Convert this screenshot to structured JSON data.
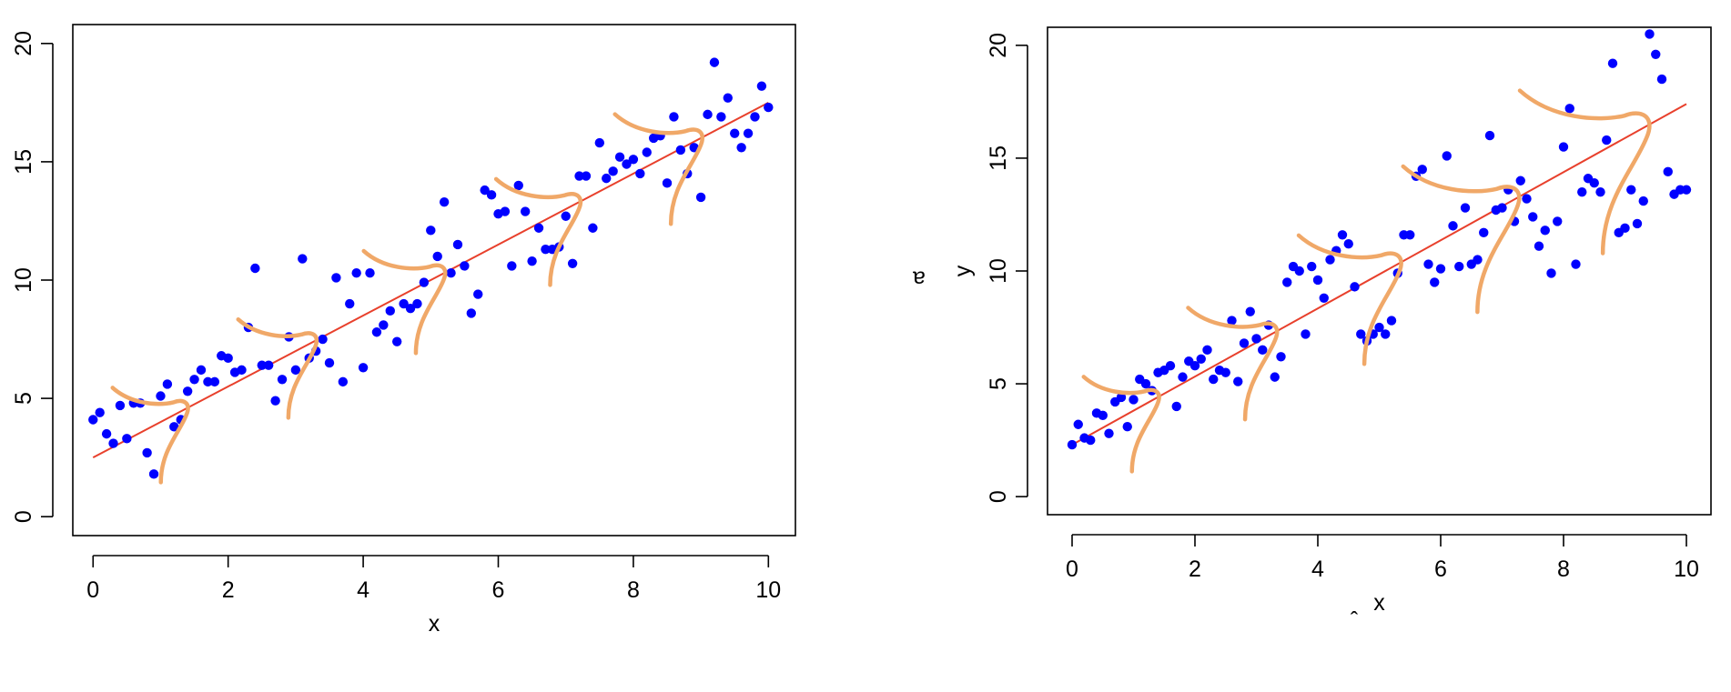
{
  "chart_data": [
    {
      "type": "scatter",
      "title": "",
      "xlabel": "x",
      "ylabel": "",
      "xlim": [
        -0.3,
        10.4
      ],
      "ylim": [
        -0.8,
        20.8
      ],
      "xticks": [
        "0",
        "2",
        "4",
        "6",
        "8",
        "10"
      ],
      "yticks": [
        "0",
        "5",
        "10",
        "15",
        "20"
      ],
      "grid": false,
      "point_color": "#0000ff",
      "line_color": "#e8402c",
      "curve_color": "#f0a868",
      "fit_line": {
        "x": [
          0,
          10
        ],
        "y": [
          2.5,
          17.5
        ]
      },
      "points": {
        "x": [
          0.0,
          0.1,
          0.2,
          0.3,
          0.4,
          0.5,
          0.6,
          0.7,
          0.8,
          0.9,
          1.0,
          1.1,
          1.2,
          1.3,
          1.4,
          1.5,
          1.6,
          1.7,
          1.8,
          1.9,
          2.0,
          2.1,
          2.2,
          2.3,
          2.4,
          2.5,
          2.6,
          2.7,
          2.8,
          2.9,
          3.0,
          3.1,
          3.2,
          3.3,
          3.4,
          3.5,
          3.6,
          3.7,
          3.8,
          3.9,
          4.0,
          4.1,
          4.2,
          4.3,
          4.4,
          4.5,
          4.6,
          4.7,
          4.8,
          4.9,
          5.0,
          5.1,
          5.2,
          5.3,
          5.4,
          5.5,
          5.6,
          5.7,
          5.8,
          5.9,
          6.0,
          6.1,
          6.2,
          6.3,
          6.4,
          6.5,
          6.6,
          6.7,
          6.8,
          6.9,
          7.0,
          7.1,
          7.2,
          7.3,
          7.4,
          7.5,
          7.6,
          7.7,
          7.8,
          7.9,
          8.0,
          8.1,
          8.2,
          8.3,
          8.4,
          8.5,
          8.6,
          8.7,
          8.8,
          8.9,
          9.0,
          9.1,
          9.2,
          9.3,
          9.4,
          9.5,
          9.6,
          9.7,
          9.8,
          9.9,
          10.0
        ],
        "y": [
          4.1,
          4.4,
          3.5,
          3.1,
          4.7,
          3.3,
          4.8,
          4.8,
          2.7,
          1.8,
          5.1,
          5.6,
          3.8,
          4.1,
          5.3,
          5.8,
          6.2,
          5.7,
          5.7,
          6.8,
          6.7,
          6.1,
          6.2,
          8.0,
          10.5,
          6.4,
          6.4,
          4.9,
          5.8,
          7.6,
          6.2,
          10.9,
          6.7,
          7.0,
          7.5,
          6.5,
          10.1,
          5.7,
          9.0,
          10.3,
          6.3,
          10.3,
          7.8,
          8.1,
          8.7,
          7.4,
          9.0,
          8.8,
          9.0,
          9.9,
          12.1,
          11.0,
          13.3,
          10.3,
          11.5,
          10.6,
          8.6,
          9.4,
          13.8,
          13.6,
          12.8,
          12.9,
          10.6,
          14.0,
          12.9,
          10.8,
          12.2,
          11.3,
          11.3,
          11.4,
          12.7,
          10.7,
          14.4,
          14.4,
          12.2,
          15.8,
          14.3,
          14.6,
          15.2,
          14.9,
          15.1,
          14.5,
          15.4,
          16.0,
          16.1,
          14.1,
          16.9,
          15.5,
          14.5,
          15.6,
          13.5,
          17.0,
          19.2,
          16.9,
          17.7,
          16.2,
          15.6,
          16.2,
          16.9,
          18.2,
          17.3
        ]
      },
      "curves_count": 5
    },
    {
      "type": "scatter",
      "title": "",
      "xlabel": "x",
      "ylabel": "y",
      "xlim": [
        -0.4,
        10.4
      ],
      "ylim": [
        -0.8,
        20.8
      ],
      "xticks": [
        "0",
        "2",
        "4",
        "6",
        "8",
        "10"
      ],
      "yticks": [
        "0",
        "5",
        "10",
        "15",
        "20"
      ],
      "grid": false,
      "point_color": "#0000ff",
      "line_color": "#e8402c",
      "curve_color": "#f0a868",
      "fit_line": {
        "x": [
          0,
          10
        ],
        "y": [
          2.3,
          17.4
        ]
      },
      "points": {
        "x": [
          0.0,
          0.1,
          0.2,
          0.3,
          0.4,
          0.5,
          0.6,
          0.7,
          0.8,
          0.9,
          1.0,
          1.1,
          1.2,
          1.3,
          1.4,
          1.5,
          1.6,
          1.7,
          1.8,
          1.9,
          2.0,
          2.1,
          2.2,
          2.3,
          2.4,
          2.5,
          2.6,
          2.7,
          2.8,
          2.9,
          3.0,
          3.1,
          3.2,
          3.3,
          3.4,
          3.5,
          3.6,
          3.7,
          3.8,
          3.9,
          4.0,
          4.1,
          4.2,
          4.3,
          4.4,
          4.5,
          4.6,
          4.7,
          4.8,
          4.9,
          5.0,
          5.1,
          5.2,
          5.3,
          5.4,
          5.5,
          5.6,
          5.7,
          5.8,
          5.9,
          6.0,
          6.1,
          6.2,
          6.3,
          6.4,
          6.5,
          6.6,
          6.7,
          6.8,
          6.9,
          7.0,
          7.1,
          7.2,
          7.3,
          7.4,
          7.5,
          7.6,
          7.7,
          7.8,
          7.9,
          8.0,
          8.1,
          8.2,
          8.3,
          8.4,
          8.5,
          8.6,
          8.7,
          8.8,
          8.9,
          9.0,
          9.1,
          9.2,
          9.3,
          9.4,
          9.5,
          9.6,
          9.7,
          9.8,
          9.9,
          10.0
        ],
        "y": [
          2.3,
          3.2,
          2.6,
          2.5,
          3.7,
          3.6,
          2.8,
          4.2,
          4.4,
          3.1,
          4.3,
          5.2,
          5.0,
          4.7,
          5.5,
          5.6,
          5.8,
          4.0,
          5.3,
          6.0,
          5.8,
          6.1,
          6.5,
          5.2,
          5.6,
          5.5,
          7.8,
          5.1,
          6.8,
          8.2,
          7.0,
          6.5,
          7.6,
          5.3,
          6.2,
          9.5,
          10.2,
          10.0,
          7.2,
          10.2,
          9.6,
          8.8,
          10.5,
          10.9,
          11.6,
          11.2,
          9.3,
          7.2,
          6.9,
          7.2,
          7.5,
          7.2,
          7.8,
          9.9,
          11.6,
          11.6,
          14.2,
          14.5,
          10.3,
          9.5,
          10.1,
          15.1,
          12.0,
          10.2,
          12.8,
          10.3,
          10.5,
          11.7,
          16.0,
          12.7,
          12.8,
          13.6,
          12.2,
          14.0,
          13.2,
          12.4,
          11.1,
          11.8,
          9.9,
          12.2,
          15.5,
          17.2,
          10.3,
          13.5,
          14.1,
          13.9,
          13.5,
          15.8,
          19.2,
          11.7,
          11.9,
          13.6,
          12.1,
          13.1,
          20.5,
          19.6,
          18.5,
          14.4,
          13.4,
          13.6,
          13.6
        ]
      },
      "curves_count": 6
    }
  ]
}
